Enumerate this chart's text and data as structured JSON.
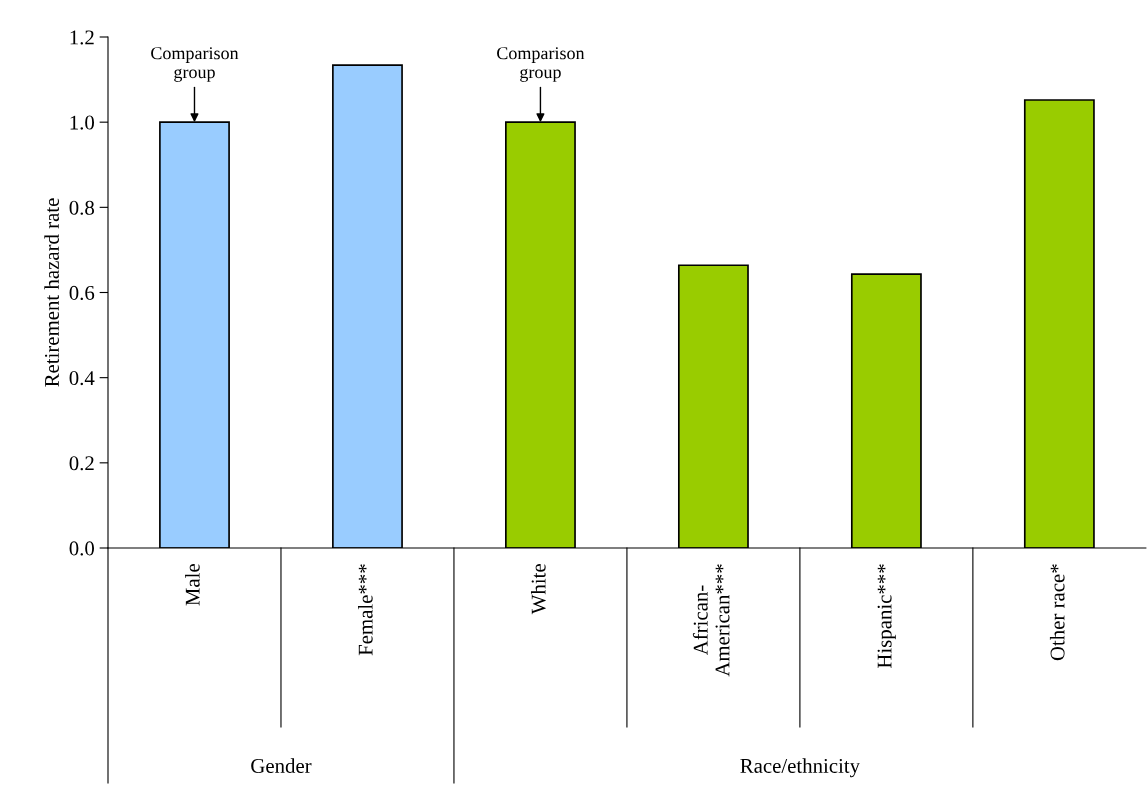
{
  "chart_data": {
    "type": "bar",
    "ylabel": "Retirement hazard rate",
    "categories": [
      "Male",
      "Female***",
      "White",
      "African-\nAmerican***",
      "Hispanic***",
      "Other race*"
    ],
    "values": [
      1.0,
      1.134,
      1.0,
      0.664,
      0.643,
      1.052
    ],
    "colors": [
      "#99ccff",
      "#99ccff",
      "#99cc00",
      "#99cc00",
      "#99cc00",
      "#99cc00"
    ],
    "ylim": [
      0,
      1.2
    ],
    "yticks": [
      {
        "value": 0,
        "label": "0.0"
      },
      {
        "value": 0.2,
        "label": "0.2"
      },
      {
        "value": 0.4,
        "label": "0.4"
      },
      {
        "value": 0.6,
        "label": "0.6"
      },
      {
        "value": 0.8,
        "label": "0.8"
      },
      {
        "value": 1.0,
        "label": "1.0"
      },
      {
        "value": 1.2,
        "label": "1.2"
      }
    ],
    "annotations": [
      {
        "text": "Comparison\ngroup",
        "x": "Male",
        "y": 1.0
      },
      {
        "text": "Comparison\ngroup",
        "x": "White",
        "y": 1.0
      },
      "Gender",
      "Race/ethnicity"
    ],
    "grid": false,
    "legend": false
  }
}
